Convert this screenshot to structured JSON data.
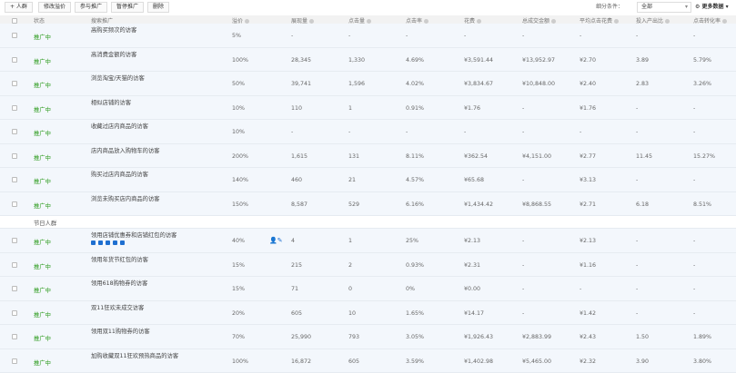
{
  "toolbar": {
    "add": "+ 人群",
    "edit_bid": "修改溢价",
    "join": "参与推广",
    "pause": "暂停推广",
    "delete": "删除",
    "filter_label": "细分条件：",
    "filter_value": "全部",
    "more_data": "更多数据"
  },
  "columns": [
    "状态",
    "搜索推广",
    "溢价",
    "展现量",
    "点击量",
    "点击率",
    "花费",
    "总成交金额",
    "平均点击花费",
    "投入产出比",
    "点击转化率"
  ],
  "status_color": "#2a9a1a",
  "rows": [
    {
      "status": "推广中",
      "name": "高购买频次的访客",
      "v": [
        "5%",
        "-",
        "-",
        "-",
        "-",
        "-",
        "-",
        "-",
        "-"
      ]
    },
    {
      "status": "推广中",
      "name": "高消费金额的访客",
      "v": [
        "100%",
        "28,345",
        "1,330",
        "4.69%",
        "¥3,591.44",
        "¥13,952.97",
        "¥2.70",
        "3.89",
        "5.79%"
      ]
    },
    {
      "status": "推广中",
      "name": "浏览淘宝/天猫的访客",
      "v": [
        "50%",
        "39,741",
        "1,596",
        "4.02%",
        "¥3,834.67",
        "¥10,848.00",
        "¥2.40",
        "2.83",
        "3.26%"
      ]
    },
    {
      "status": "推广中",
      "name": "相似店铺的访客",
      "v": [
        "10%",
        "110",
        "1",
        "0.91%",
        "¥1.76",
        "-",
        "¥1.76",
        "-",
        "-"
      ]
    },
    {
      "status": "推广中",
      "name": "收藏过店内商品的访客",
      "v": [
        "10%",
        "-",
        "-",
        "-",
        "-",
        "-",
        "-",
        "-",
        "-"
      ]
    },
    {
      "status": "推广中",
      "name": "店内商品放入购物车的访客",
      "v": [
        "200%",
        "1,615",
        "131",
        "8.11%",
        "¥362.54",
        "¥4,151.00",
        "¥2.77",
        "11.45",
        "15.27%"
      ]
    },
    {
      "status": "推广中",
      "name": "购买过店内商品的访客",
      "v": [
        "140%",
        "460",
        "21",
        "4.57%",
        "¥65.68",
        "-",
        "¥3.13",
        "-",
        "-"
      ]
    },
    {
      "status": "推广中",
      "name": "浏览未购买店内商品的访客",
      "v": [
        "150%",
        "8,587",
        "529",
        "6.16%",
        "¥1,434.42",
        "¥8,868.55",
        "¥2.71",
        "6.18",
        "8.51%"
      ]
    }
  ],
  "section": "节日人群",
  "rows2": [
    {
      "status": "推广中",
      "name": "领用店铺优惠券和店铺红包的访客",
      "v": [
        "40%",
        "4",
        "1",
        "25%",
        "¥2.13",
        "-",
        "¥2.13",
        "-",
        "-"
      ]
    },
    {
      "status": "推广中",
      "name": "领用年货节红包的访客",
      "v": [
        "15%",
        "215",
        "2",
        "0.93%",
        "¥2.31",
        "-",
        "¥1.16",
        "-",
        "-"
      ]
    },
    {
      "status": "推广中",
      "name": "领用618购物券的访客",
      "v": [
        "15%",
        "71",
        "0",
        "0%",
        "¥0.00",
        "-",
        "-",
        "-",
        "-"
      ]
    },
    {
      "status": "推广中",
      "name": "双11狂欢未成交访客",
      "v": [
        "20%",
        "605",
        "10",
        "1.65%",
        "¥14.17",
        "-",
        "¥1.42",
        "-",
        "-"
      ]
    },
    {
      "status": "推广中",
      "name": "领用双11购物券的访客",
      "v": [
        "70%",
        "25,990",
        "793",
        "3.05%",
        "¥1,926.43",
        "¥2,883.99",
        "¥2.43",
        "1.50",
        "1.89%"
      ]
    },
    {
      "status": "推广中",
      "name": "加购收藏双11狂欢预热商品的访客",
      "v": [
        "100%",
        "16,872",
        "605",
        "3.59%",
        "¥1,402.98",
        "¥5,465.00",
        "¥2.32",
        "3.90",
        "3.80%"
      ]
    }
  ]
}
